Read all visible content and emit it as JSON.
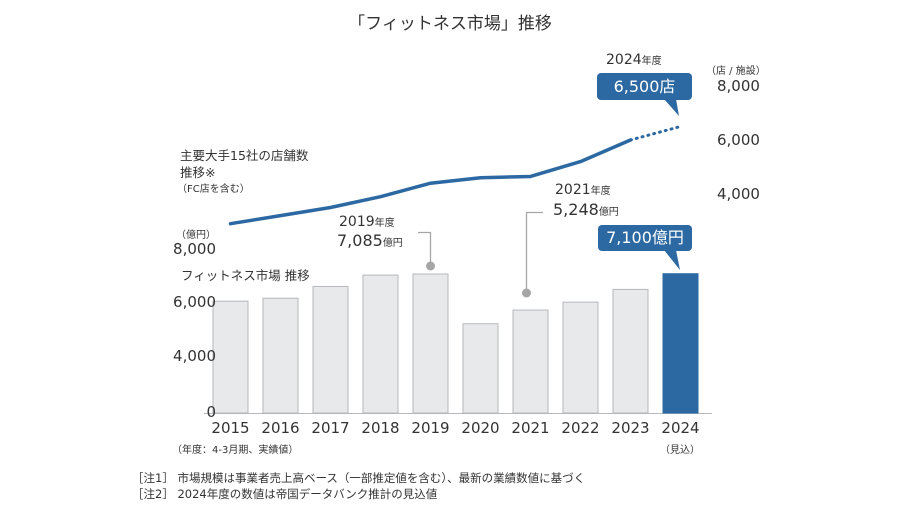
{
  "title": "「フィットネス市場」推移",
  "colors": {
    "accent": "#2c69a2",
    "bar_fill": "#e8e9eb",
    "bar_stroke": "#b5b7ba",
    "annotation_gray": "#a6a6a6"
  },
  "chart_data": {
    "type": "bar+line",
    "title": "「フィットネス市場」推移",
    "categories": [
      "2015",
      "2016",
      "2017",
      "2018",
      "2019",
      "2020",
      "2021",
      "2022",
      "2023",
      "2024"
    ],
    "category_sublabels": {
      "2024": "（見込）"
    },
    "xlabel_note": "（年度：4-3月期、実績値）",
    "series": [
      {
        "name": "フィットネス市場 推移",
        "type": "bar",
        "axis": "left",
        "unit": "億円",
        "values": [
          5700,
          5850,
          6450,
          7030,
          7085,
          4550,
          5248,
          5650,
          6300,
          7100
        ],
        "highlight_index": 9
      },
      {
        "name": "主要大手15社の店舗数推移※",
        "name_lines": [
          "主要大手15社の店舗数",
          "推移※",
          "（FC店を含む）"
        ],
        "type": "line",
        "axis": "right",
        "unit": "店 / 施設",
        "values": [
          2900,
          3200,
          3500,
          3900,
          4400,
          4600,
          4650,
          5200,
          6000,
          6500
        ],
        "projected_from_index": 8
      }
    ],
    "left_axis": {
      "unit_label": "（億円）",
      "ticks": [
        "8,000",
        "6,000",
        "4,000",
        "0"
      ],
      "tick_values": [
        8000,
        6000,
        4000,
        0
      ]
    },
    "right_axis": {
      "unit_label": "（店 / 施設）",
      "ticks": [
        "8,000",
        "6,000",
        "4,000"
      ],
      "tick_values": [
        8000,
        6000,
        4000
      ]
    },
    "annotations": [
      {
        "category": "2019",
        "year": "2019",
        "year_unit": "年度",
        "value": "7,085",
        "value_unit": "億円"
      },
      {
        "category": "2021",
        "year": "2021",
        "year_unit": "年度",
        "value": "5,248",
        "value_unit": "億円"
      }
    ],
    "callouts": [
      {
        "series": "line",
        "category": "2024",
        "year": "2024",
        "year_unit": "年度",
        "text": "6,500店"
      },
      {
        "series": "bar",
        "category": "2024",
        "text": "7,100億円"
      }
    ],
    "grid": false,
    "legend": "inline labels"
  },
  "notes": [
    "［注1］ 市場規模は事業者売上高ベース（一部推定値を含む）、最新の業績数値に基づく",
    "［注2］ 2024年度の数値は帝国データバンク推計の見込値"
  ]
}
